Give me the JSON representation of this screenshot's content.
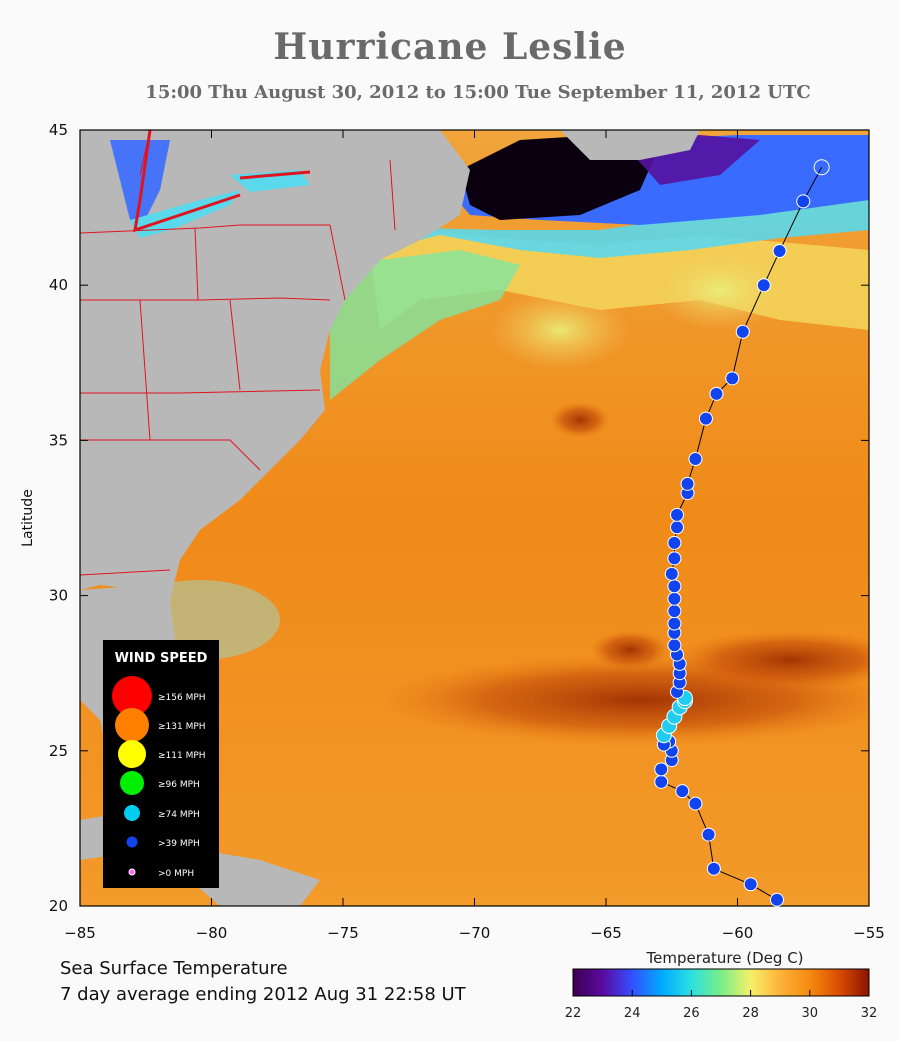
{
  "header": {
    "title": "Hurricane Leslie",
    "subtitle": "15:00 Thu August 30, 2012 to 15:00 Tue September 11, 2012  UTC"
  },
  "caption": {
    "line1": "Sea Surface Temperature",
    "line2": "7 day average ending 2012 Aug 31 22:58 UT"
  },
  "chart_data": {
    "type": "scatter",
    "title": "Hurricane Leslie",
    "ylabel": "Latitude",
    "xlabel": "",
    "xlim": [
      -85,
      -55
    ],
    "ylim": [
      20,
      45
    ],
    "xticks": [
      -85,
      -80,
      -75,
      -70,
      -65,
      -60,
      -55
    ],
    "xtick_labels": [
      "−85",
      "−80",
      "−75",
      "−70",
      "−65",
      "−60",
      "−55"
    ],
    "yticks": [
      20,
      25,
      30,
      35,
      40,
      45
    ],
    "ytick_labels": [
      "20",
      "25",
      "30",
      "35",
      "40",
      "45"
    ],
    "background": "Sea surface temperature map with land masses and state borders",
    "legend": {
      "title": "WIND SPEED",
      "placement": "bottom-left",
      "items": [
        {
          "label": "≥156 MPH",
          "color": "#ff0000"
        },
        {
          "label": "≥131 MPH",
          "color": "#ff7f00"
        },
        {
          "label": "≥111 MPH",
          "color": "#ffff00"
        },
        {
          "label": "≥96 MPH",
          "color": "#00ee00"
        },
        {
          "label": "≥74 MPH",
          "color": "#00ccee"
        },
        {
          "label": ">39 MPH",
          "color": "#1144ee"
        },
        {
          "label": ">0 MPH",
          "color": "#ff66ff"
        }
      ]
    },
    "colorbar": {
      "label": "Temperature (Deg C)",
      "min": 22,
      "max": 32,
      "ticks": [
        22,
        24,
        26,
        28,
        30,
        32
      ],
      "tick_labels": [
        "22",
        "24",
        "26",
        "28",
        "30",
        "32"
      ],
      "colors": [
        "#3d0050",
        "#5a0aa0",
        "#3350ff",
        "#00aaff",
        "#2ce0e0",
        "#7aee88",
        "#f5f06a",
        "#fdb23a",
        "#f68a10",
        "#d94c00",
        "#8a1400"
      ]
    },
    "track": [
      {
        "lon": -58.5,
        "lat": 20.2,
        "cat": "storm"
      },
      {
        "lon": -59.5,
        "lat": 20.7,
        "cat": "storm"
      },
      {
        "lon": -60.9,
        "lat": 21.2,
        "cat": "storm"
      },
      {
        "lon": -61.1,
        "lat": 22.3,
        "cat": "storm"
      },
      {
        "lon": -61.6,
        "lat": 23.3,
        "cat": "storm"
      },
      {
        "lon": -62.1,
        "lat": 23.7,
        "cat": "storm"
      },
      {
        "lon": -62.9,
        "lat": 24.0,
        "cat": "storm"
      },
      {
        "lon": -62.9,
        "lat": 24.4,
        "cat": "storm"
      },
      {
        "lon": -62.5,
        "lat": 24.7,
        "cat": "storm"
      },
      {
        "lon": -62.5,
        "lat": 25.0,
        "cat": "storm"
      },
      {
        "lon": -62.6,
        "lat": 25.3,
        "cat": "storm"
      },
      {
        "lon": -62.8,
        "lat": 25.2,
        "cat": "storm"
      },
      {
        "lon": -62.8,
        "lat": 25.5,
        "cat": "hurricane"
      },
      {
        "lon": -62.6,
        "lat": 25.8,
        "cat": "hurricane"
      },
      {
        "lon": -62.4,
        "lat": 26.1,
        "cat": "hurricane"
      },
      {
        "lon": -62.2,
        "lat": 26.4,
        "cat": "hurricane"
      },
      {
        "lon": -62.0,
        "lat": 26.6,
        "cat": "hurricane"
      },
      {
        "lon": -62.0,
        "lat": 26.7,
        "cat": "hurricane"
      },
      {
        "lon": -62.3,
        "lat": 26.9,
        "cat": "storm"
      },
      {
        "lon": -62.2,
        "lat": 27.2,
        "cat": "storm"
      },
      {
        "lon": -62.2,
        "lat": 27.5,
        "cat": "storm"
      },
      {
        "lon": -62.2,
        "lat": 27.8,
        "cat": "storm"
      },
      {
        "lon": -62.3,
        "lat": 28.1,
        "cat": "storm"
      },
      {
        "lon": -62.4,
        "lat": 28.4,
        "cat": "storm"
      },
      {
        "lon": -62.4,
        "lat": 28.8,
        "cat": "storm"
      },
      {
        "lon": -62.4,
        "lat": 29.1,
        "cat": "storm"
      },
      {
        "lon": -62.4,
        "lat": 29.5,
        "cat": "storm"
      },
      {
        "lon": -62.4,
        "lat": 29.9,
        "cat": "storm"
      },
      {
        "lon": -62.4,
        "lat": 30.3,
        "cat": "storm"
      },
      {
        "lon": -62.5,
        "lat": 30.7,
        "cat": "storm"
      },
      {
        "lon": -62.4,
        "lat": 31.2,
        "cat": "storm"
      },
      {
        "lon": -62.4,
        "lat": 31.7,
        "cat": "storm"
      },
      {
        "lon": -62.3,
        "lat": 32.2,
        "cat": "storm"
      },
      {
        "lon": -62.3,
        "lat": 32.6,
        "cat": "storm"
      },
      {
        "lon": -61.9,
        "lat": 33.3,
        "cat": "storm"
      },
      {
        "lon": -61.9,
        "lat": 33.6,
        "cat": "storm"
      },
      {
        "lon": -61.6,
        "lat": 34.4,
        "cat": "storm"
      },
      {
        "lon": -61.2,
        "lat": 35.7,
        "cat": "storm"
      },
      {
        "lon": -60.8,
        "lat": 36.5,
        "cat": "storm"
      },
      {
        "lon": -60.2,
        "lat": 37.0,
        "cat": "storm"
      },
      {
        "lon": -59.8,
        "lat": 38.5,
        "cat": "storm"
      },
      {
        "lon": -59.0,
        "lat": 40.0,
        "cat": "storm"
      },
      {
        "lon": -58.4,
        "lat": 41.1,
        "cat": "storm"
      },
      {
        "lon": -57.5,
        "lat": 42.7,
        "cat": "storm"
      },
      {
        "lon": -56.8,
        "lat": 43.8,
        "cat": "posttropical"
      }
    ]
  }
}
